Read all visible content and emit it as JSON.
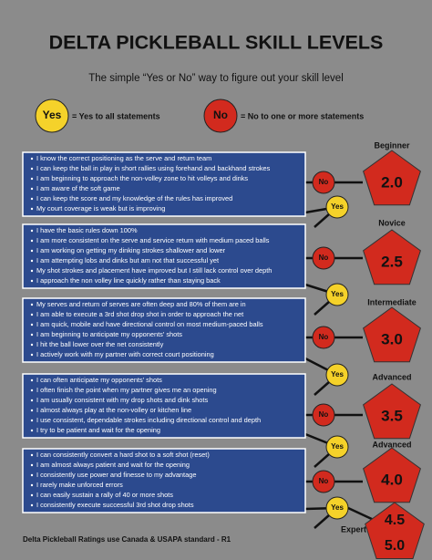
{
  "header": {
    "title": "DELTA PICKLEBALL SKILL LEVELS",
    "subtitle": "The simple “Yes or No” way to figure out your skill level"
  },
  "legend": {
    "yes": {
      "badge": "Yes",
      "text": "= Yes to all statements"
    },
    "no": {
      "badge": "No",
      "text": "= No to one or more statements"
    }
  },
  "levels": [
    {
      "name": "Beginner",
      "rating": "2.0",
      "statements": [
        "I know the correct positioning as the serve and return team",
        "I can keep the ball in play in short rallies using forehand and backhand strokes",
        "I am beginning to approach the non-volley zone to hit volleys and dinks",
        "I am aware of the soft game",
        "I can keep the score and my knowledge of the rules has improved",
        "My court coverage is weak but is improving"
      ]
    },
    {
      "name": "Novice",
      "rating": "2.5",
      "statements": [
        "I have the basic rules down 100%",
        "I am more consistent on the serve and service return with medium paced balls",
        "I am working on getting my dinking strokes shallower and lower",
        "I am attempting lobs and dinks but am not that successful yet",
        "My shot strokes and placement  have improved but I still lack control over depth",
        "I approach the non volley line quickly rather than staying back"
      ]
    },
    {
      "name": "Intermediate",
      "rating": "3.0",
      "statements": [
        "My serves and return of serves are often deep and 80% of them are in",
        "I am able to execute a 3rd shot drop shot in order to approach the net",
        "I am quick, mobile and have directional control on most medium-paced balls",
        "I am beginning to anticipate my opponents' shots",
        "I hit the ball lower over the net consistently",
        "I actively work with my partner with correct court positioning"
      ]
    },
    {
      "name": "Advanced",
      "rating": "3.5",
      "statements": [
        "I can often anticipate my opponents' shots",
        "I often finish the point when my partner gives me an opening",
        "I am usually consistent with my drop shots and dink shots",
        "I almost always play at the non-volley or kitchen line",
        "I use consistent, dependable strokes including directional control and depth",
        "I try to be patient and wait for the opening"
      ]
    },
    {
      "name": "Advanced",
      "rating": "4.0",
      "statements": [
        "I can consistently convert a hard shot to a soft shot (reset)",
        "I am almost always patient and wait for the opening",
        "I consistently use power and finesse to my advantage",
        "I rarely make unforced errors",
        "I can easily sustain a rally of 40 or more shots",
        "I consistently execute successful 3rd shot drop shots"
      ]
    }
  ],
  "expert": {
    "name": "Expert",
    "ratings": [
      "4.5",
      "5.0"
    ]
  },
  "footer": "Delta Pickleball Ratings use Canada & USAPA standard - R1"
}
